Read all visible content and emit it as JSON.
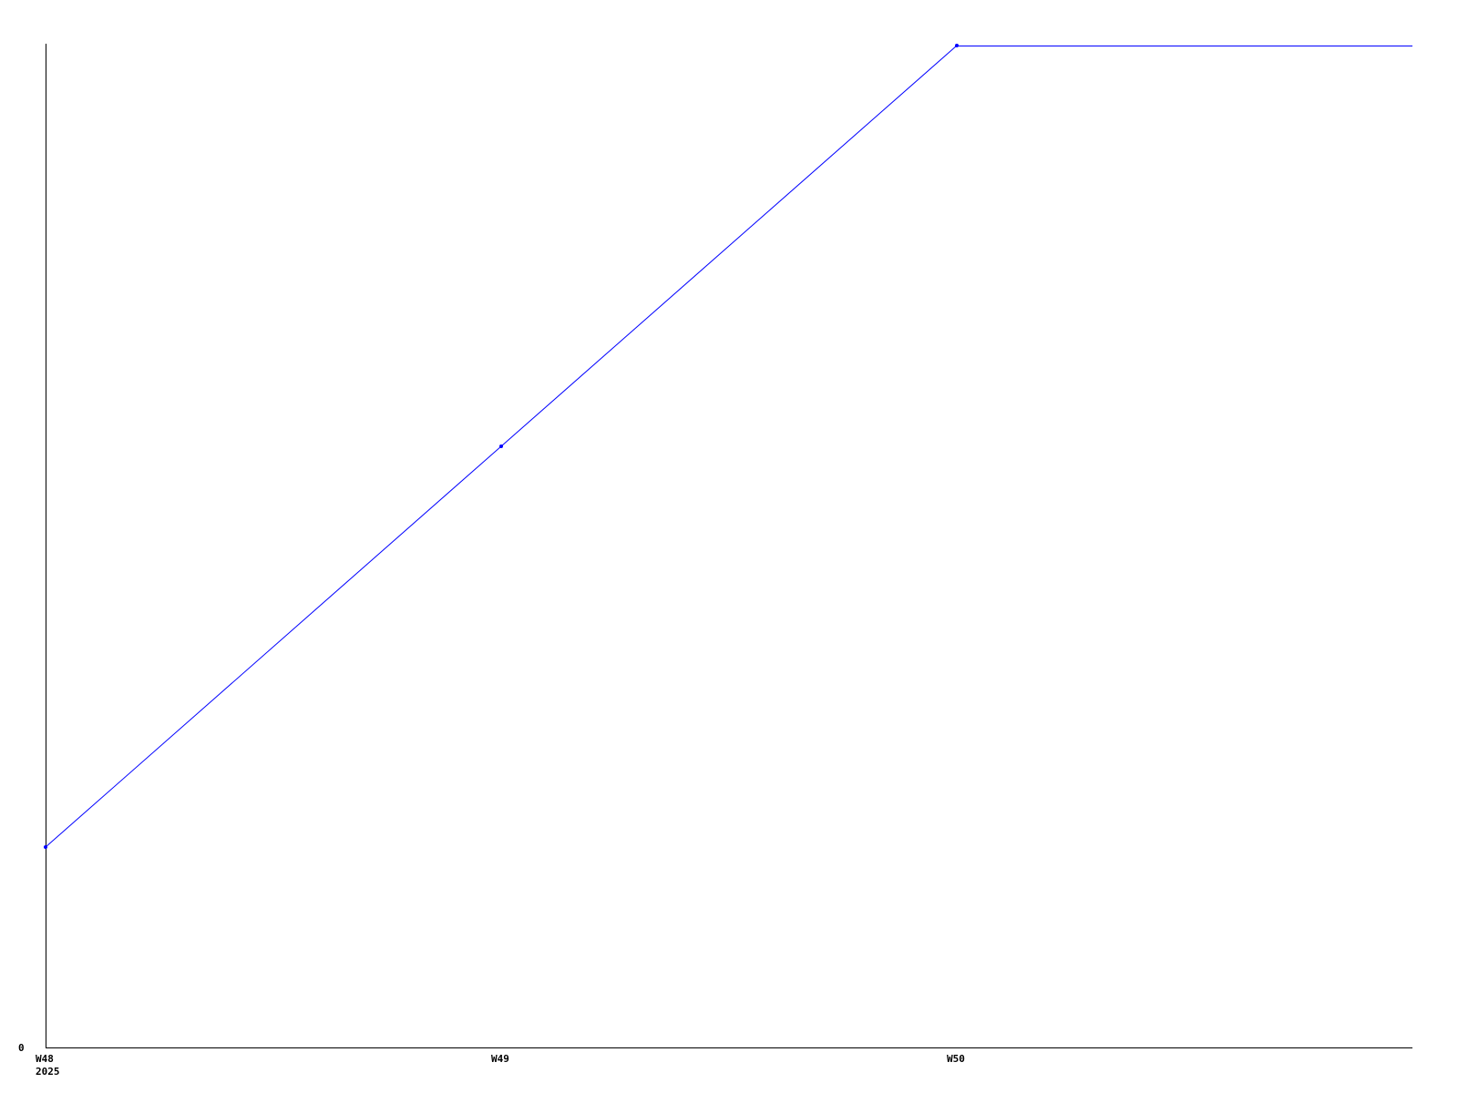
{
  "chart_data": {
    "type": "line",
    "title": "",
    "xlabel": "",
    "ylabel": "",
    "categories": [
      "W48",
      "W49",
      "W50"
    ],
    "x_sublabels": [
      "2025",
      "",
      ""
    ],
    "series": [
      {
        "values": [
          1,
          3,
          5
        ],
        "color": "#0000ff",
        "extends_flat_to_right_edge": true
      }
    ],
    "ylim": [
      0,
      5
    ],
    "y_tick_labels": [
      "0"
    ],
    "grid": false,
    "legend": "none"
  }
}
